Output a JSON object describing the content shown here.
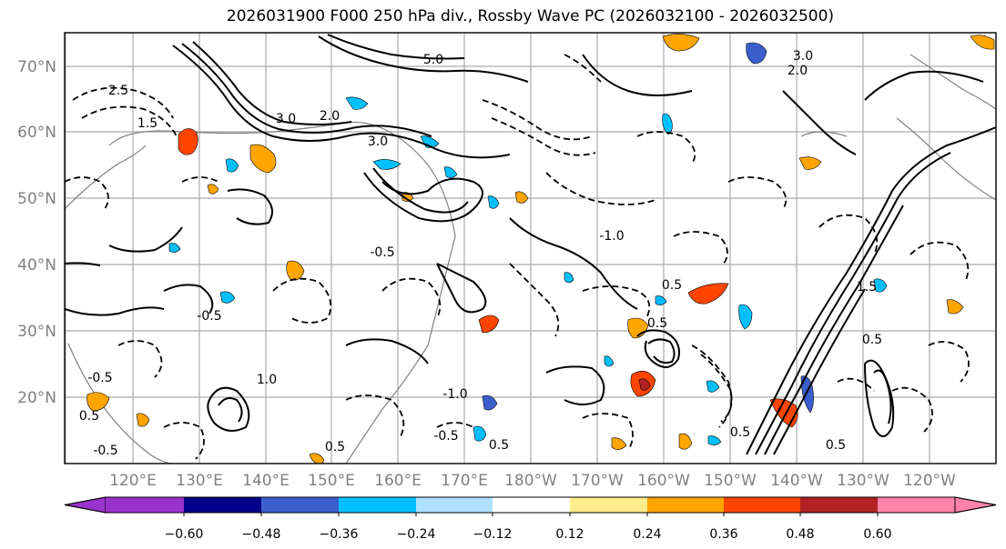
{
  "title": "2026031900 F000 250 hPa div., Rossby Wave PC (2026032100 - 2026032500)",
  "map": {
    "lat_labels": [
      "70°N",
      "60°N",
      "50°N",
      "40°N",
      "30°N",
      "20°N"
    ],
    "lon_labels": [
      "120°E",
      "130°E",
      "140°E",
      "150°E",
      "160°E",
      "170°E",
      "180°W",
      "170°W",
      "160°W",
      "150°W",
      "140°W",
      "130°W",
      "120°W"
    ],
    "contour_labels": [
      "3.0",
      "5.0",
      "2.0",
      "2.5",
      "3.0",
      "1.5",
      "3.0",
      "-0.5",
      "0.5",
      "-1.0",
      "0.5",
      "-0.5",
      "1.0",
      "0.5",
      "0.5",
      "2.0",
      "0.5",
      "0.5",
      "-0.5",
      "-0.5",
      "0.5",
      "-0.5",
      "1.5",
      "0.5",
      "-1.0"
    ],
    "colors": {
      "frame": "#000000",
      "grid": "#aaaaaa",
      "coast": "#808080",
      "contour": "#000000"
    }
  },
  "colorbar": {
    "tick_labels": [
      "−0.60",
      "−0.48",
      "−0.36",
      "−0.24",
      "−0.12",
      "0.12",
      "0.24",
      "0.36",
      "0.48",
      "0.60"
    ],
    "colors": [
      "#9a32cd",
      "#00008b",
      "#3a5fcd",
      "#00bfff",
      "#b0e2ff",
      "#ffffff",
      "#ffec8b",
      "#ffa500",
      "#ff4500",
      "#b22222",
      "#ff82ab"
    ]
  }
}
